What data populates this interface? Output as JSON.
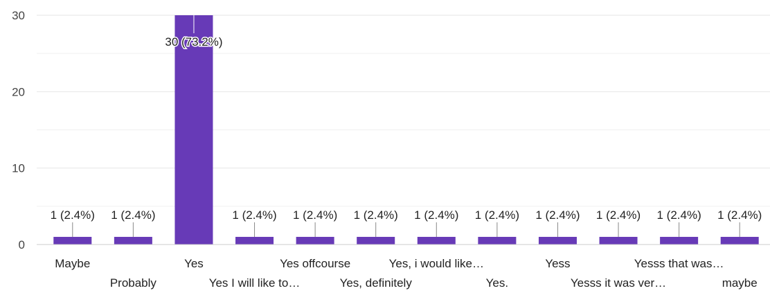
{
  "chart_data": {
    "type": "bar",
    "categories": [
      "Maybe",
      "Probably",
      "Yes",
      "Yes I will like to…",
      "Yes offcourse",
      "Yes, definitely",
      "Yes, i would like…",
      "Yes.",
      "Yess",
      "Yesss it was ver…",
      "Yesss that was…",
      "maybe"
    ],
    "values": [
      1,
      1,
      30,
      1,
      1,
      1,
      1,
      1,
      1,
      1,
      1,
      1
    ],
    "data_labels": [
      "1 (2.4%)",
      "1 (2.4%)",
      "30 (73.2%)",
      "1 (2.4%)",
      "1 (2.4%)",
      "1 (2.4%)",
      "1 (2.4%)",
      "1 (2.4%)",
      "1 (2.4%)",
      "1 (2.4%)",
      "1 (2.4%)",
      "1 (2.4%)"
    ],
    "yticks": [
      0,
      10,
      20,
      30
    ],
    "ylim": [
      0,
      30
    ],
    "grid": true,
    "legend": "none",
    "bar_color": "#673ab7",
    "title": "",
    "xlabel": "",
    "ylabel": ""
  }
}
